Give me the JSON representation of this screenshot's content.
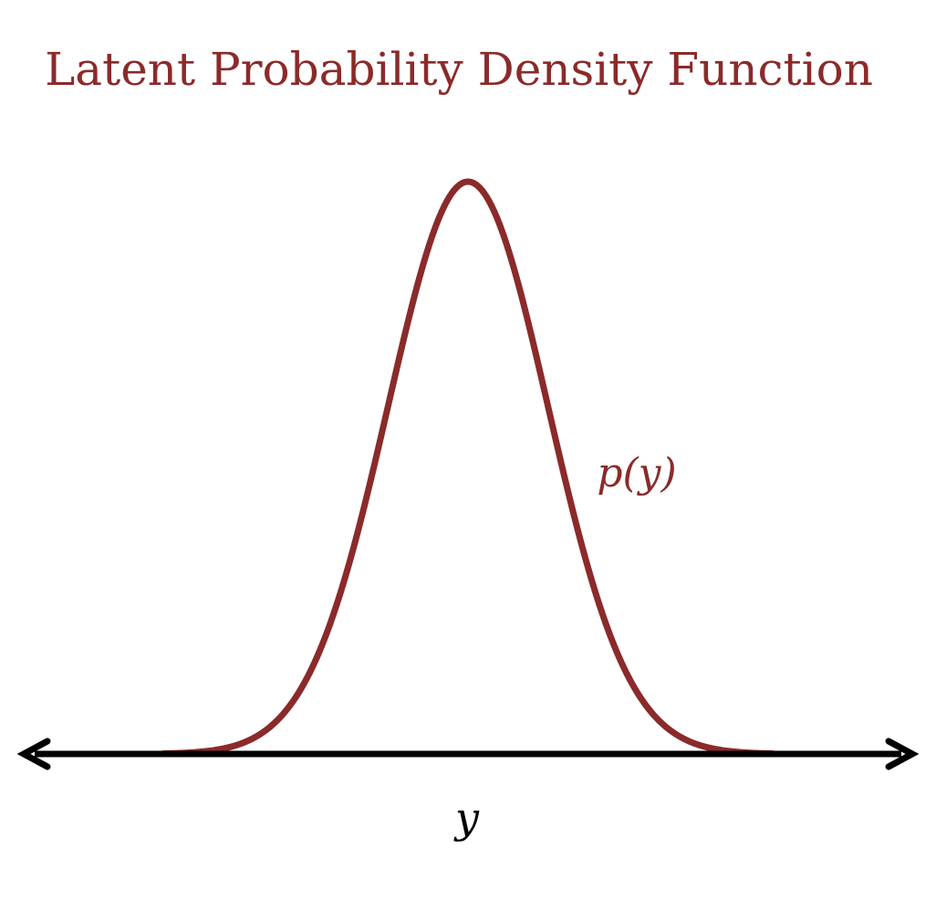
{
  "chart_data": {
    "type": "line",
    "title": "Latent Probability Density Function",
    "xlabel": "y",
    "ylabel": "",
    "series": [
      {
        "name": "p(y)",
        "distribution": "gaussian",
        "mean": 0,
        "std": 1
      }
    ],
    "xlim": [
      -5.5,
      5.5
    ],
    "ylim": [
      0,
      0.4
    ],
    "grid": false,
    "legend": "none"
  },
  "colors": {
    "curve": "#8B2A2A",
    "axis": "#000000",
    "title": "#8B2A2A",
    "curve_label": "#8B2A2A"
  }
}
